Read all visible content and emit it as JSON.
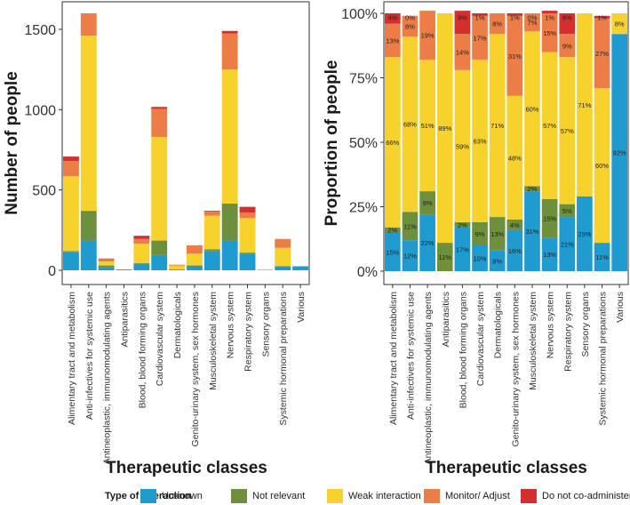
{
  "colors": {
    "Unknown": "#1f9bd0",
    "Not relevant": "#6e8f3c",
    "Weak interaction": "#f7d12c",
    "Monitor/ Adjust": "#ec7d46",
    "Do not co-administer": "#d32f2f"
  },
  "legend": {
    "title": "Type of interaction",
    "entries": [
      "Unknown",
      "Not relevant",
      "Weak interaction",
      "Monitor/ Adjust",
      "Do not co-administer"
    ]
  },
  "chart_data": [
    {
      "type": "bar",
      "stacked": true,
      "title": "",
      "xlabel": "Therapeutic classes",
      "ylabel": "Number of people",
      "ylim": [
        0,
        1650
      ],
      "yticks": [
        0,
        500,
        1000,
        1500
      ],
      "categories": [
        "Alimentary tract and metabolism",
        "Anti-infectives for systemic use",
        "Antineoplastic, immunomodulating agents",
        "Antiparasitics",
        "Blood, blood forming organs",
        "Cardiovascular system",
        "Dermatologicals",
        "Genito-urinary system, sex hormones",
        "Musculoskeletal system",
        "Nervous system",
        "Respiratory system",
        "Sensory organs",
        "Systemic hormonal preparations",
        "Various"
      ],
      "series": [
        {
          "name": "Unknown",
          "values": [
            115,
            185,
            20,
            0,
            40,
            95,
            0,
            25,
            120,
            185,
            100,
            0,
            25,
            25
          ]
        },
        {
          "name": "Not relevant",
          "values": [
            5,
            185,
            10,
            5,
            5,
            90,
            5,
            5,
            10,
            230,
            10,
            2,
            0,
            0
          ]
        },
        {
          "name": "Weak interaction",
          "values": [
            465,
            1090,
            25,
            0,
            120,
            645,
            25,
            75,
            210,
            835,
            215,
            3,
            115,
            0
          ]
        },
        {
          "name": "Monitor/ Adjust",
          "values": [
            95,
            140,
            15,
            0,
            30,
            175,
            5,
            50,
            25,
            225,
            35,
            0,
            55,
            0
          ]
        },
        {
          "name": "Do not co-administer",
          "values": [
            28,
            0,
            3,
            0,
            20,
            12,
            0,
            0,
            5,
            15,
            35,
            0,
            0,
            0
          ]
        }
      ]
    },
    {
      "type": "bar",
      "stacked": true,
      "percent": true,
      "title": "",
      "xlabel": "Therapeutic classes",
      "ylabel": "Proportion of people",
      "ylim": [
        0,
        100
      ],
      "yticks": [
        0,
        25,
        50,
        75,
        100
      ],
      "ytick_labels": [
        "0%",
        "25%",
        "50%",
        "75%",
        "100%"
      ],
      "categories": [
        "Alimentary tract and metabolism",
        "Anti-infectives for systemic use",
        "Antineoplastic, immunomodulating agents",
        "Antiparasitics",
        "Blood, blood forming organs",
        "Cardiovascular system",
        "Dermatologicals",
        "Genito-urinary system, sex hormones",
        "Musculoskeletal system",
        "Nervous system",
        "Respiratory system",
        "Sensory organs",
        "Systemic hormonal preparations",
        "Various"
      ],
      "series": [
        {
          "name": "Unknown",
          "values": [
            15,
            12,
            22,
            0,
            17,
            10,
            8,
            16,
            31,
            13,
            21,
            29,
            11,
            92
          ]
        },
        {
          "name": "Not relevant",
          "values": [
            2,
            11,
            9,
            11,
            2,
            9,
            13,
            4,
            2,
            15,
            5,
            0,
            0,
            0
          ]
        },
        {
          "name": "Weak interaction",
          "values": [
            66,
            68,
            51,
            89,
            59,
            63,
            71,
            48,
            60,
            57,
            57,
            71,
            60,
            8
          ]
        },
        {
          "name": "Monitor/ Adjust",
          "values": [
            13,
            8,
            19,
            0,
            14,
            17,
            8,
            31,
            7,
            15,
            9,
            0,
            27,
            0
          ]
        },
        {
          "name": "Do not co-administer",
          "values": [
            4,
            0,
            0,
            0,
            9,
            1,
            0,
            1,
            0,
            1,
            8,
            0,
            1,
            0
          ]
        }
      ],
      "labels": [
        [
          "15%",
          "12%",
          "22%",
          "",
          "17%",
          "10%",
          "8%",
          "16%",
          "31%",
          "13%",
          "21%",
          "29%",
          "11%",
          "92%"
        ],
        [
          "2%",
          "11%",
          "9%",
          "11%",
          "2%",
          "9%",
          "13%",
          "4%",
          "2%",
          "15%",
          "5%",
          "",
          "",
          ""
        ],
        [
          "66%",
          "68%",
          "51%",
          "89%",
          "59%",
          "63%",
          "71%",
          "48%",
          "60%",
          "57%",
          "57%",
          "71%",
          "60%",
          "8%"
        ],
        [
          "13%",
          "8%",
          "19%",
          "",
          "14%",
          "17%",
          "8%",
          "31%",
          "7%",
          "15%",
          "9%",
          "",
          "27%",
          ""
        ],
        [
          "4%",
          "0%",
          "",
          "",
          "9%",
          "1%",
          "",
          "1%",
          "0%",
          "1%",
          "8%",
          "",
          "1%",
          ""
        ]
      ]
    }
  ]
}
